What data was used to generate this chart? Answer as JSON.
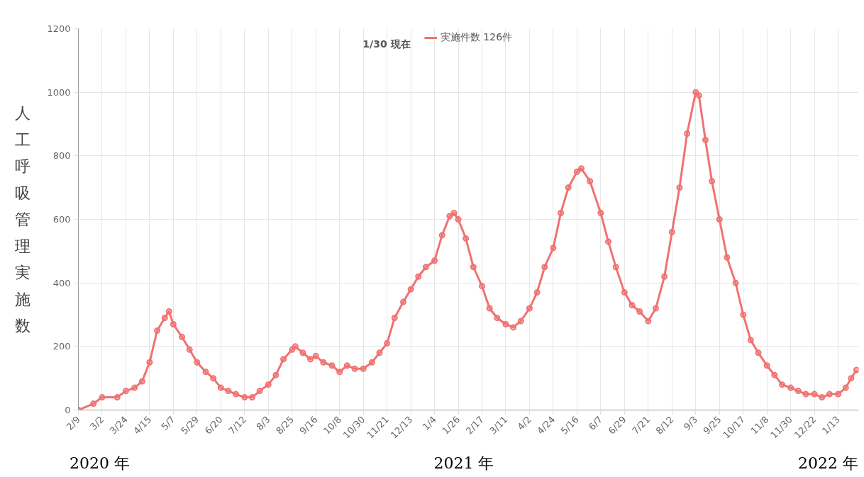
{
  "chart_data": {
    "type": "line",
    "ylabel": "人工呼吸管理実施数",
    "annotations": [
      "1/30 現在",
      "2020 年",
      "2021 年",
      "2022 年"
    ],
    "x": [
      "2020-02-09",
      "2020-02-23",
      "2020-03-02",
      "2020-03-16",
      "2020-03-24",
      "2020-04-01",
      "2020-04-08",
      "2020-04-15",
      "2020-04-22",
      "2020-04-29",
      "2020-05-03",
      "2020-05-07",
      "2020-05-15",
      "2020-05-22",
      "2020-05-29",
      "2020-06-06",
      "2020-06-13",
      "2020-06-20",
      "2020-06-27",
      "2020-07-04",
      "2020-07-12",
      "2020-07-19",
      "2020-07-26",
      "2020-08-03",
      "2020-08-10",
      "2020-08-17",
      "2020-08-25",
      "2020-08-28",
      "2020-09-04",
      "2020-09-11",
      "2020-09-16",
      "2020-09-23",
      "2020-10-01",
      "2020-10-08",
      "2020-10-15",
      "2020-10-22",
      "2020-10-30",
      "2020-11-07",
      "2020-11-14",
      "2020-11-21",
      "2020-11-28",
      "2020-12-06",
      "2020-12-13",
      "2020-12-20",
      "2020-12-27",
      "2021-01-04",
      "2021-01-11",
      "2021-01-18",
      "2021-01-22",
      "2021-01-26",
      "2021-02-02",
      "2021-02-09",
      "2021-02-17",
      "2021-02-24",
      "2021-03-03",
      "2021-03-11",
      "2021-03-18",
      "2021-03-25",
      "2021-04-02",
      "2021-04-09",
      "2021-04-16",
      "2021-04-24",
      "2021-05-01",
      "2021-05-08",
      "2021-05-16",
      "2021-05-20",
      "2021-05-28",
      "2021-06-07",
      "2021-06-14",
      "2021-06-21",
      "2021-06-29",
      "2021-07-06",
      "2021-07-13",
      "2021-07-21",
      "2021-07-28",
      "2021-08-05",
      "2021-08-12",
      "2021-08-19",
      "2021-08-26",
      "2021-09-03",
      "2021-09-06",
      "2021-09-12",
      "2021-09-18",
      "2021-09-25",
      "2021-10-02",
      "2021-10-10",
      "2021-10-17",
      "2021-10-24",
      "2021-10-31",
      "2021-11-08",
      "2021-11-15",
      "2021-11-22",
      "2021-11-30",
      "2021-12-07",
      "2021-12-14",
      "2021-12-22",
      "2021-12-29",
      "2022-01-05",
      "2022-01-13",
      "2022-01-20",
      "2022-01-25",
      "2022-01-30"
    ],
    "series": [
      {
        "name": "実施件数 126件",
        "color": "#f07272",
        "values": [
          0,
          20,
          40,
          40,
          60,
          70,
          90,
          150,
          250,
          290,
          310,
          270,
          230,
          190,
          150,
          120,
          100,
          70,
          60,
          50,
          40,
          40,
          60,
          80,
          110,
          160,
          190,
          200,
          180,
          160,
          170,
          150,
          140,
          120,
          140,
          130,
          130,
          150,
          180,
          210,
          290,
          340,
          380,
          420,
          450,
          470,
          550,
          610,
          620,
          600,
          540,
          450,
          390,
          320,
          290,
          270,
          260,
          280,
          320,
          370,
          450,
          510,
          620,
          700,
          750,
          760,
          720,
          620,
          530,
          450,
          370,
          330,
          310,
          280,
          320,
          420,
          560,
          700,
          870,
          1000,
          990,
          850,
          720,
          600,
          480,
          400,
          300,
          220,
          180,
          140,
          110,
          80,
          70,
          60,
          50,
          50,
          40,
          50,
          50,
          70,
          100,
          126
        ]
      }
    ],
    "xlim": [
      "2020-02-09",
      "2022-02-01"
    ],
    "xticks": [
      {
        "value": "2020-02-09",
        "label": "2/9"
      },
      {
        "value": "2020-03-02",
        "label": "3/2"
      },
      {
        "value": "2020-03-24",
        "label": "3/24"
      },
      {
        "value": "2020-04-15",
        "label": "4/15"
      },
      {
        "value": "2020-05-07",
        "label": "5/7"
      },
      {
        "value": "2020-05-29",
        "label": "5/29"
      },
      {
        "value": "2020-06-20",
        "label": "6/20"
      },
      {
        "value": "2020-07-12",
        "label": "7/12"
      },
      {
        "value": "2020-08-03",
        "label": "8/3"
      },
      {
        "value": "2020-08-25",
        "label": "8/25"
      },
      {
        "value": "2020-09-16",
        "label": "9/16"
      },
      {
        "value": "2020-10-08",
        "label": "10/8"
      },
      {
        "value": "2020-10-30",
        "label": "10/30"
      },
      {
        "value": "2020-11-21",
        "label": "11/21"
      },
      {
        "value": "2020-12-13",
        "label": "12/13"
      },
      {
        "value": "2021-01-04",
        "label": "1/4"
      },
      {
        "value": "2021-01-26",
        "label": "1/26"
      },
      {
        "value": "2021-02-17",
        "label": "2/17"
      },
      {
        "value": "2021-03-11",
        "label": "3/11"
      },
      {
        "value": "2021-04-02",
        "label": "4/2"
      },
      {
        "value": "2021-04-24",
        "label": "4/24"
      },
      {
        "value": "2021-05-16",
        "label": "5/16"
      },
      {
        "value": "2021-06-07",
        "label": "6/7"
      },
      {
        "value": "2021-06-29",
        "label": "6/29"
      },
      {
        "value": "2021-07-21",
        "label": "7/21"
      },
      {
        "value": "2021-08-12",
        "label": "8/12"
      },
      {
        "value": "2021-09-03",
        "label": "9/3"
      },
      {
        "value": "2021-09-25",
        "label": "9/25"
      },
      {
        "value": "2021-10-17",
        "label": "10/17"
      },
      {
        "value": "2021-11-08",
        "label": "11/8"
      },
      {
        "value": "2021-11-30",
        "label": "11/30"
      },
      {
        "value": "2021-12-22",
        "label": "12/22"
      },
      {
        "value": "2022-01-13",
        "label": "1/13"
      }
    ],
    "ylim": [
      0,
      1200
    ],
    "yticks": [
      0,
      200,
      400,
      600,
      800,
      1000,
      1200
    ],
    "grid": true,
    "legend": "top",
    "marker": "circle",
    "line_style": "solid"
  }
}
